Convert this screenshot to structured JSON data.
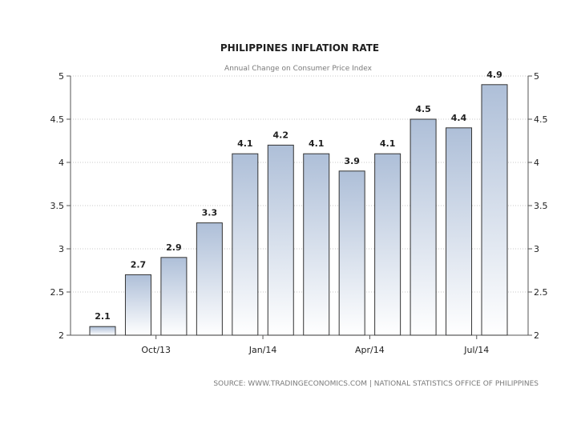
{
  "chart_data": {
    "type": "bar",
    "title": "PHILIPPINES INFLATION RATE",
    "subtitle": "Annual Change on Consumer Price Index",
    "values": [
      2.1,
      2.7,
      2.9,
      3.3,
      4.1,
      4.2,
      4.1,
      3.9,
      4.1,
      4.5,
      4.4,
      4.9
    ],
    "data_labels": [
      "2.1",
      "2.7",
      "2.9",
      "3.3",
      "4.1",
      "4.2",
      "4.1",
      "3.9",
      "4.1",
      "4.5",
      "4.4",
      "4.9"
    ],
    "x_tick_labels": [
      {
        "label": "Oct/13",
        "at_bar": 1.5
      },
      {
        "label": "Jan/14",
        "at_bar": 4.5
      },
      {
        "label": "Apr/14",
        "at_bar": 7.5
      },
      {
        "label": "Jul/14",
        "at_bar": 10.5
      }
    ],
    "y_ticks": [
      "2",
      "2.5",
      "3",
      "3.5",
      "4",
      "4.5",
      "5"
    ],
    "ylim": [
      2,
      5
    ],
    "y_axis_both_sides": true,
    "grid": true,
    "legend": "none",
    "bar_color_top": "#aebfd8",
    "bar_color_bottom": "#ffffff",
    "bar_border_color": "#333333",
    "source": "SOURCE: WWW.TRADINGECONOMICS.COM | NATIONAL STATISTICS OFFICE OF PHILIPPINES"
  }
}
